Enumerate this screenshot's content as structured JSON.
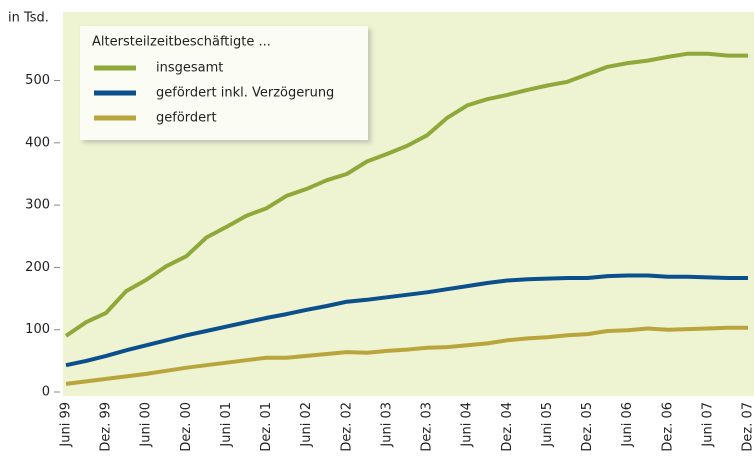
{
  "chart_data": {
    "type": "line",
    "y_label": "in Tsd.",
    "legend_title": "Altersteilzeitbeschäftigte ...",
    "categories": [
      "Juni 99",
      null,
      "Dez. 99",
      null,
      "Juni 00",
      null,
      "Dez. 00",
      null,
      "Juni 01",
      null,
      "Dez. 01",
      null,
      "Juni 02",
      null,
      "Dez. 02",
      null,
      "Juni 03",
      null,
      "Dez. 03",
      null,
      "Juni 04",
      null,
      "Dez. 04",
      null,
      "Juni 05",
      null,
      "Dez. 05",
      null,
      "Juni 06",
      null,
      "Dez. 06",
      null,
      "Juni 07",
      null,
      "Dez. 07"
    ],
    "series": [
      {
        "name": "insgesamt",
        "color": "#8fa83a",
        "values": [
          90,
          112,
          127,
          162,
          180,
          202,
          218,
          248,
          265,
          283,
          295,
          315,
          326,
          340,
          350,
          370,
          382,
          395,
          412,
          440,
          460,
          470,
          477,
          485,
          492,
          498,
          510,
          522,
          528,
          532,
          538,
          543,
          543,
          540,
          540
        ]
      },
      {
        "name": "gefördert inkl. Verzögerung",
        "color": "#0b4f8c",
        "values": [
          43,
          50,
          58,
          67,
          75,
          83,
          91,
          98,
          105,
          112,
          119,
          125,
          132,
          138,
          145,
          148,
          152,
          156,
          160,
          165,
          170,
          175,
          179,
          181,
          182,
          183,
          183,
          186,
          187,
          187,
          185,
          185,
          184,
          183,
          183
        ]
      },
      {
        "name": "gefördert",
        "color": "#b9a53b",
        "values": [
          13,
          17,
          21,
          25,
          29,
          34,
          39,
          43,
          47,
          51,
          55,
          55,
          58,
          61,
          64,
          63,
          66,
          68,
          71,
          72,
          75,
          78,
          83,
          86,
          88,
          91,
          93,
          98,
          99,
          102,
          100,
          101,
          102,
          103,
          103
        ]
      }
    ],
    "ylim": [
      0,
      610
    ],
    "yticks": [
      0,
      100,
      200,
      300,
      400,
      500
    ],
    "grid": false
  }
}
